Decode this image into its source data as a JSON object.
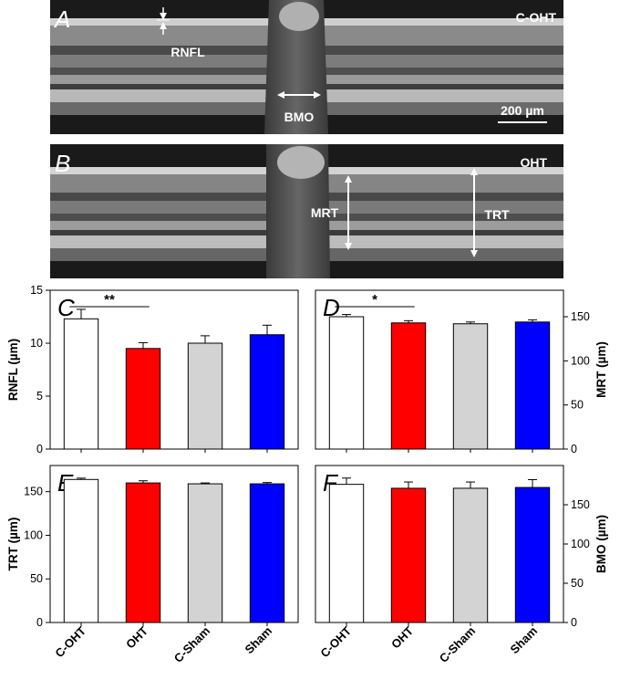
{
  "scans": [
    {
      "letter": "A",
      "corner_label": "C-OHT",
      "labels": {
        "rnfl": "RNFL",
        "bmo": "BMO",
        "scale": "200 µm"
      }
    },
    {
      "letter": "B",
      "corner_label": "OHT",
      "labels": {
        "mrt": "MRT",
        "trt": "TRT"
      }
    }
  ],
  "colors": {
    "C-OHT": "#ffffff",
    "OHT": "#ff0000",
    "C-Sham": "#d3d3d3",
    "Sham": "#0000ff"
  },
  "chart_data": [
    {
      "panel": "C",
      "type": "bar",
      "categories": [
        "C-OHT",
        "OHT",
        "C-Sham",
        "Sham"
      ],
      "values": [
        12.3,
        9.5,
        10.0,
        10.8
      ],
      "errors": [
        0.9,
        0.55,
        0.7,
        0.9
      ],
      "ylabel": "RNFL (µm)",
      "ylim": [
        0,
        15
      ],
      "yticks": [
        0,
        5,
        10,
        15
      ],
      "axis_side": "left",
      "significance": {
        "from": 0,
        "to": 1,
        "label": "**"
      },
      "show_category_labels": false
    },
    {
      "panel": "D",
      "type": "bar",
      "categories": [
        "C-OHT",
        "OHT",
        "C-Sham",
        "Sham"
      ],
      "values": [
        150,
        143,
        142,
        144
      ],
      "errors": [
        2.5,
        2.5,
        2.0,
        2.5
      ],
      "ylabel": "MRT (µm)",
      "ylim": [
        0,
        180
      ],
      "yticks": [
        0,
        50,
        100,
        150
      ],
      "axis_side": "right",
      "significance": {
        "from": 0,
        "to": 1,
        "label": "*"
      },
      "show_category_labels": false
    },
    {
      "panel": "E",
      "type": "bar",
      "categories": [
        "C-OHT",
        "OHT",
        "C-Sham",
        "Sham"
      ],
      "values": [
        164,
        160,
        159,
        159
      ],
      "errors": [
        1.5,
        2.5,
        1.0,
        1.5
      ],
      "ylabel": "TRT (µm)",
      "ylim": [
        0,
        180
      ],
      "yticks": [
        0,
        50,
        100,
        150
      ],
      "axis_side": "left",
      "significance": null,
      "show_category_labels": true
    },
    {
      "panel": "F",
      "type": "bar",
      "categories": [
        "C-OHT",
        "OHT",
        "C-Sham",
        "Sham"
      ],
      "values": [
        176,
        171,
        171,
        172
      ],
      "errors": [
        8,
        8,
        8,
        10
      ],
      "ylabel": "BMO (µm)",
      "ylim": [
        0,
        200
      ],
      "yticks": [
        0,
        50,
        100,
        150
      ],
      "axis_side": "right",
      "significance": null,
      "show_category_labels": true
    }
  ]
}
